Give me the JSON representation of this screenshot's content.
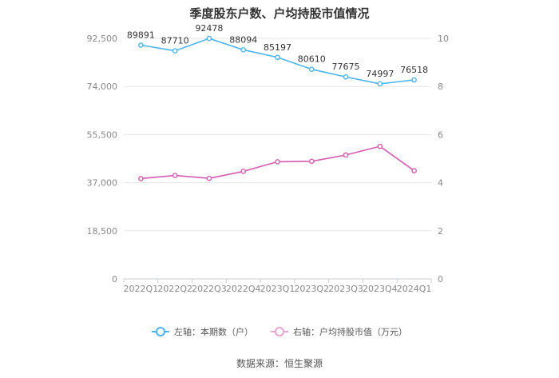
{
  "title": "季度股东户数、户均持股市值情况",
  "source": "数据来源：恒生聚源",
  "colors": {
    "left_series": "#4bb4ee",
    "right_series": "#d65bb0",
    "grid": "#e6e6ea",
    "axis_text": "#888888"
  },
  "chart_data": {
    "type": "line",
    "categories": [
      "2022Q1",
      "2022Q2",
      "2022Q3",
      "2022Q4",
      "2023Q1",
      "2023Q2",
      "2023Q3",
      "2023Q4",
      "2024Q1"
    ],
    "left_axis": {
      "ticks": [
        "0",
        "18,500",
        "37,000",
        "55,500",
        "74,000",
        "92,500"
      ],
      "ylim": [
        0,
        92500
      ]
    },
    "right_axis": {
      "ticks": [
        "0",
        "2",
        "4",
        "6",
        "8",
        "10"
      ],
      "ylim": [
        0,
        10
      ]
    },
    "series": [
      {
        "name": "左轴：本期数（户）",
        "axis": "left",
        "values": [
          89891,
          87710,
          92478,
          88094,
          85197,
          80610,
          77675,
          74997,
          76518
        ],
        "labels": [
          "89891",
          "87710",
          "92478",
          "88094",
          "85197",
          "80610",
          "77675",
          "74997",
          "76518"
        ]
      },
      {
        "name": "右轴：户均持股市值（万元）",
        "axis": "right",
        "values": [
          4.17,
          4.3,
          4.18,
          4.47,
          4.87,
          4.89,
          5.15,
          5.51,
          4.5
        ]
      }
    ],
    "grid": true,
    "legend": "bottom"
  }
}
